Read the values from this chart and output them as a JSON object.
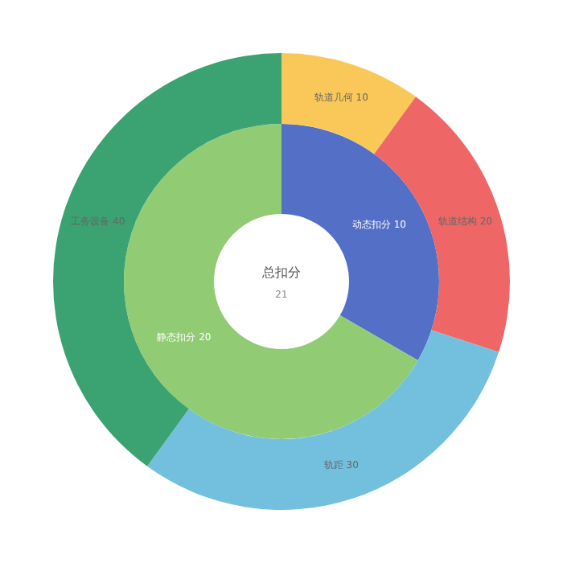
{
  "chart_data": [
    {
      "type": "donut",
      "title": "总扣分",
      "subtitle": "21",
      "data_labels": true,
      "categories": [
        "动态扣分",
        "静态扣分"
      ],
      "colors": [
        "#5470c6",
        "#91cc75"
      ],
      "values": [
        10,
        20
      ]
    },
    {
      "type": "donut",
      "data_labels": true,
      "categories": [
        "轨道几何",
        "轨道结构",
        "轨距",
        "工务设备"
      ],
      "colors": [
        "#fac858",
        "#ee6666",
        "#73c0de",
        "#3ba272"
      ],
      "values": [
        10,
        20,
        30,
        40
      ]
    }
  ]
}
